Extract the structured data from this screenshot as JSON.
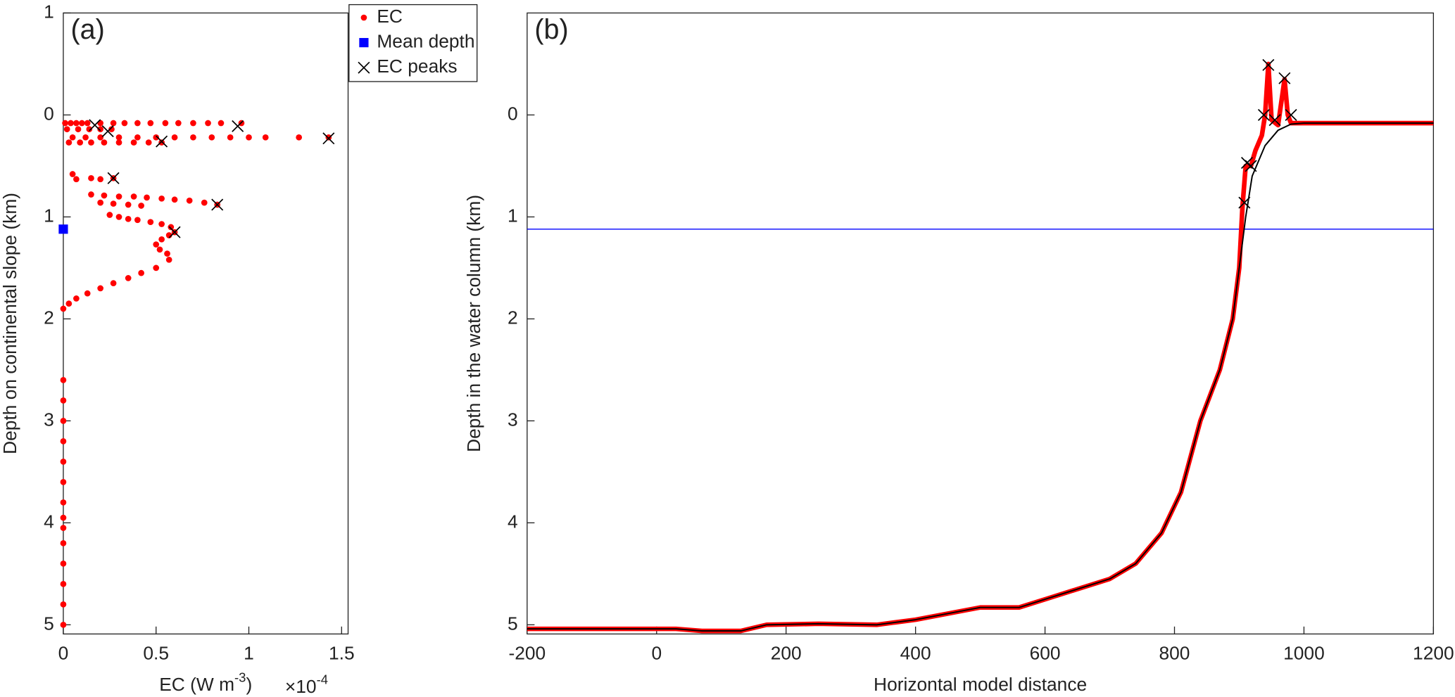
{
  "chart_data": [
    {
      "type": "scatter",
      "panel_label": "(a)",
      "ylabel": "Depth on continental slope (km)",
      "xlabel": "EC (W m",
      "xlabel_sup": "-3",
      "xlabel_end": ")",
      "x_multiplier": "×10",
      "x_multiplier_exp": "-4",
      "xlim": [
        0,
        1.535
      ],
      "xticks": [
        0,
        0.5,
        1,
        1.5
      ],
      "ylim": [
        -1,
        5.09
      ],
      "y_reversed": true,
      "yticks": [
        {
          "value": -1,
          "label": "1"
        },
        0,
        1,
        2,
        3,
        4,
        5
      ],
      "legend": "top-right",
      "series": [
        {
          "name": "EC",
          "color": "#ff0000",
          "marker": "circle",
          "x": [
            0.01,
            0.04,
            0.07,
            0.1,
            0.13,
            0.2,
            0.27,
            0.33,
            0.4,
            0.47,
            0.55,
            0.62,
            0.7,
            0.78,
            0.85,
            0.96,
            0.02,
            0.08,
            0.14,
            0.2,
            0.26,
            0.05,
            0.12,
            0.2,
            0.3,
            0.4,
            0.5,
            0.6,
            0.7,
            0.8,
            0.9,
            1.0,
            1.09,
            1.27,
            1.43,
            0.03,
            0.09,
            0.15,
            0.22,
            0.3,
            0.38,
            0.46,
            0.53,
            0.05,
            0.07,
            0.15,
            0.2,
            0.27,
            0.15,
            0.22,
            0.3,
            0.38,
            0.45,
            0.53,
            0.6,
            0.68,
            0.76,
            0.83,
            0.2,
            0.27,
            0.35,
            0.42,
            0.25,
            0.3,
            0.35,
            0.4,
            0.47,
            0.53,
            0.58,
            0.6,
            0.57,
            0.53,
            0.5,
            0.52,
            0.56,
            0.57,
            0.5,
            0.42,
            0.35,
            0.27,
            0.2,
            0.13,
            0.07,
            0.03,
            0,
            0,
            0,
            0,
            0,
            0,
            0,
            0,
            0,
            0,
            0,
            0,
            0,
            0,
            0
          ],
          "y": [
            0.08,
            0.08,
            0.08,
            0.08,
            0.08,
            0.08,
            0.08,
            0.08,
            0.08,
            0.08,
            0.08,
            0.08,
            0.08,
            0.08,
            0.08,
            0.08,
            0.14,
            0.14,
            0.14,
            0.14,
            0.14,
            0.22,
            0.22,
            0.22,
            0.22,
            0.22,
            0.22,
            0.22,
            0.22,
            0.22,
            0.22,
            0.22,
            0.22,
            0.22,
            0.22,
            0.27,
            0.27,
            0.27,
            0.27,
            0.27,
            0.27,
            0.27,
            0.27,
            0.58,
            0.63,
            0.62,
            0.63,
            0.62,
            0.78,
            0.79,
            0.8,
            0.8,
            0.81,
            0.82,
            0.83,
            0.84,
            0.86,
            0.88,
            0.86,
            0.87,
            0.88,
            0.89,
            0.98,
            1.0,
            1.02,
            1.03,
            1.05,
            1.07,
            1.1,
            1.15,
            1.18,
            1.22,
            1.27,
            1.32,
            1.36,
            1.42,
            1.5,
            1.55,
            1.6,
            1.65,
            1.7,
            1.75,
            1.8,
            1.85,
            1.9,
            2.6,
            2.8,
            3.0,
            3.2,
            3.4,
            3.6,
            3.8,
            3.95,
            4.05,
            4.2,
            4.4,
            4.6,
            4.8,
            5.0
          ]
        },
        {
          "name": "Mean depth",
          "color": "#0000ff",
          "marker": "square",
          "x": [
            0
          ],
          "y": [
            1.12
          ]
        },
        {
          "name": "EC peaks",
          "color": "#000000",
          "marker": "cross",
          "x": [
            0.17,
            0.24,
            0.94,
            0.53,
            1.43,
            0.27,
            0.83,
            0.6
          ],
          "y": [
            0.1,
            0.16,
            0.11,
            0.26,
            0.23,
            0.62,
            0.88,
            1.15
          ]
        }
      ]
    },
    {
      "type": "line",
      "panel_label": "(b)",
      "ylabel": "Depth in the water column (km)",
      "xlabel": "Horizontal model distance",
      "xlim": [
        -200,
        1200
      ],
      "xticks": [
        -200,
        0,
        200,
        400,
        600,
        800,
        1000,
        1200
      ],
      "ylim": [
        -1,
        5.09
      ],
      "y_reversed": true,
      "yticks": [
        0,
        1,
        2,
        3,
        4,
        5
      ],
      "hline": {
        "value": 1.12,
        "color": "#0000ff"
      },
      "series": [
        {
          "color": "#ff0000",
          "width": 5,
          "marker": "none",
          "x": [
            -200,
            30,
            70,
            130,
            170,
            250,
            340,
            400,
            500,
            560,
            600,
            700,
            740,
            780,
            810,
            840,
            870,
            890,
            900,
            905,
            910,
            918,
            925,
            935,
            940,
            945,
            950,
            960,
            970,
            975,
            980,
            1000,
            1200
          ],
          "y": [
            5.04,
            5.04,
            5.06,
            5.06,
            5.0,
            4.99,
            5.0,
            4.95,
            4.83,
            4.83,
            4.75,
            4.55,
            4.4,
            4.1,
            3.7,
            3.0,
            2.5,
            2.0,
            1.5,
            0.9,
            0.5,
            0.5,
            0.35,
            0.2,
            0.0,
            -0.5,
            0.05,
            0.1,
            -0.35,
            0.0,
            0.08,
            0.08,
            0.08
          ]
        },
        {
          "color": "#000000",
          "width": 1.5,
          "marker": "none",
          "x": [
            -200,
            30,
            70,
            130,
            170,
            250,
            340,
            400,
            500,
            560,
            600,
            700,
            740,
            780,
            810,
            840,
            870,
            890,
            900,
            910,
            920,
            940,
            960,
            980,
            1000,
            1200
          ],
          "y": [
            5.04,
            5.04,
            5.06,
            5.06,
            5.0,
            4.99,
            5.0,
            4.95,
            4.83,
            4.83,
            4.75,
            4.55,
            4.4,
            4.1,
            3.7,
            3.0,
            2.5,
            2.0,
            1.5,
            1.0,
            0.6,
            0.3,
            0.15,
            0.09,
            0.08,
            0.08
          ]
        },
        {
          "color": "#000000",
          "marker": "cross",
          "x": [
            908,
            912,
            918,
            938,
            945,
            955,
            970,
            980
          ],
          "y": [
            0.86,
            0.47,
            0.5,
            0.0,
            -0.49,
            0.05,
            -0.36,
            0.0
          ]
        }
      ]
    }
  ]
}
